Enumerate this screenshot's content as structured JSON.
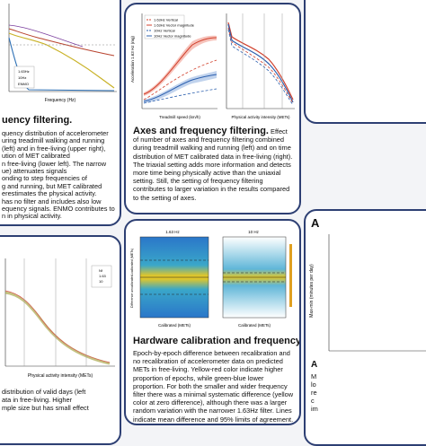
{
  "left_top": {
    "heading": "uency filtering.",
    "lines": [
      "quency distribution of accelerometer",
      "uring treadmill walking and running",
      "(left) and in free-living (upper right),",
      "ution of MET calibrated",
      "n free-living (lower left). The narrow",
      "ue) attenuates signals",
      "onding to step frequencies of",
      "g and running, but MET calibrated",
      "erestimates the physical activity.",
      "has no filter and includes also low",
      "equency signals. ENMO contributes to",
      "n in physical activity."
    ],
    "x_label": "Frequency (Hz)",
    "legend": [
      "1.63Hz",
      "10Hz",
      "ENMO"
    ]
  },
  "left_bottom": {
    "x_label": "Physical activity intensity (METs)",
    "legend": [
      "Nf",
      "1.63",
      "10"
    ],
    "lines": [
      "distribution of valid days (left",
      "ata in free-living. Higher",
      "mple size but has small effect"
    ]
  },
  "axes": {
    "heading": "Axes and frequency filtering.",
    "text": "Effect of number of axes and frequency filtering combined during treadmill walking and running (left) and on time distribution of MET calibrated data in free-living (right). The triaxial setting adds more information and detects more time being physically active than the uniaxial setting. Still, the setting of frequency filtering contributes to larger variation in the results compared to the setting of axes.",
    "left_y_label": "Acceleration 1.63 Hz (mg)",
    "left_x_label": "Treadmill speed (km/h)",
    "right_x_label": "Physical activity intensity (METs)",
    "legend": [
      "1.63Hz Vertical",
      "1.63Hz Vector magnitude",
      "10Hz Vertical",
      "10Hz Vector magnitude"
    ]
  },
  "calibration": {
    "heading": "Hardware calibration and frequency filtering.",
    "text": "Epoch-by-epoch difference between recalibration and no recalibration of accelerometer data on predicted METs in free-living. Yellow-red color indicate higher proportion of epochs, while green-blue lower proportion. For both the smaller and wider frequency filter there was a minimal systematic difference (yellow color at zero difference), although there was a larger random variation with the narrower 1.63Hz filter. Lines indicate mean difference and 95% limits of agreement.",
    "left_title": "1.63 Hz",
    "right_title": "10 Hz",
    "x_label": "Calibrated (METs)",
    "y_label": "Difference uncalibrated-calibrated (METs)"
  },
  "right_bottom": {
    "heading": "A",
    "y_label": "Max-min (minutes per day)",
    "heading2": "A",
    "fragments": [
      "M",
      "lo",
      "re",
      "c",
      "im"
    ]
  }
}
